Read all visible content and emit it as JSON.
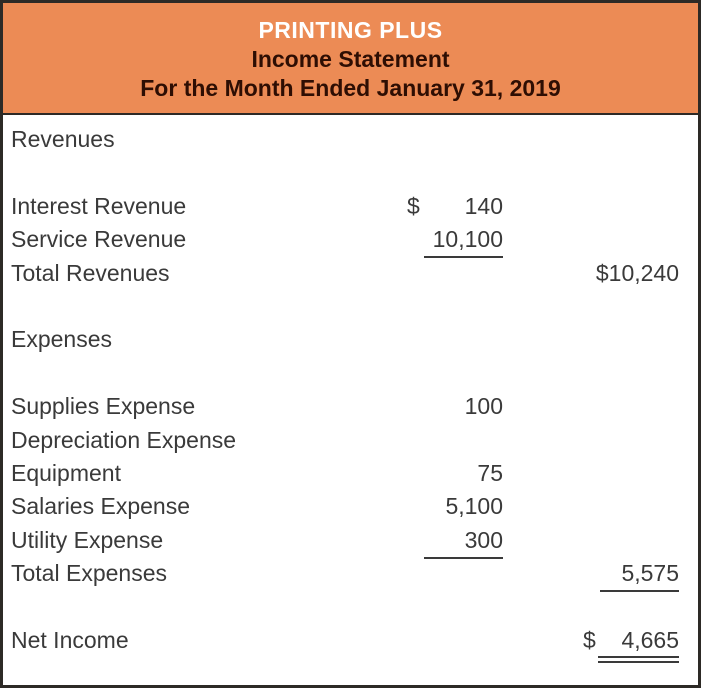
{
  "header": {
    "company": "PRINTING PLUS",
    "title": "Income Statement",
    "period": "For the Month Ended January 31, 2019"
  },
  "colors": {
    "header_bg": "#EC8B55",
    "company_text": "#FFFFFF",
    "header_text": "#2E0E03",
    "body_text": "#3A3A3A",
    "border": "#2D2A26",
    "rule": "#3A3A3A"
  },
  "statement": {
    "rows": [
      {
        "type": "section",
        "label": "Revenues"
      },
      {
        "type": "blank"
      },
      {
        "type": "item",
        "label": "Interest Revenue",
        "mid": "140",
        "mid_dollar": "$"
      },
      {
        "type": "item",
        "label": "Service Revenue",
        "mid": "10,100",
        "mid_underline": true
      },
      {
        "type": "item",
        "label": "Total Revenues",
        "right": "$10,240"
      },
      {
        "type": "blank"
      },
      {
        "type": "section",
        "label": "Expenses"
      },
      {
        "type": "blank"
      },
      {
        "type": "item",
        "label": "Supplies Expense",
        "mid": "100"
      },
      {
        "type": "item",
        "label": "Depreciation Expense"
      },
      {
        "type": "item",
        "label": "Equipment",
        "mid": "75"
      },
      {
        "type": "item",
        "label": "Salaries Expense",
        "mid": "5,100"
      },
      {
        "type": "item",
        "label": "Utility Expense",
        "mid": "300",
        "mid_underline": true
      },
      {
        "type": "item",
        "label": "Total Expenses",
        "right": "5,575",
        "right_underline": true
      },
      {
        "type": "blank"
      },
      {
        "type": "item",
        "label": "Net Income",
        "right": "4,665",
        "right_dollar": "$",
        "right_double_underline": true
      }
    ]
  }
}
